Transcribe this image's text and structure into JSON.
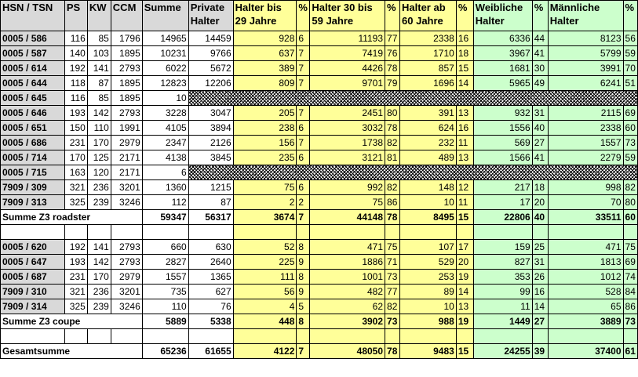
{
  "headers": {
    "hsn_tsn": "HSN / TSN",
    "ps": "PS",
    "kw": "KW",
    "ccm": "CCM",
    "summe": "Summe",
    "private": "Private Halter",
    "bis29": "Halter bis 29 Jahre",
    "pct": "%",
    "h30_59": "Halter 30 bis 59 Jahre",
    "ab60": "Halter ab 60 Jahre",
    "weiblich": "Weibliche Halter",
    "maennlich": "Männliche Halter"
  },
  "roadster_rows": [
    {
      "code": "0005 / 586",
      "ps": "116",
      "kw": "85",
      "ccm": "1796",
      "summe": "14965",
      "private": "14459",
      "b29": "928",
      "b29p": "6",
      "m": "11193",
      "mp": "77",
      "a60": "2338",
      "a60p": "16",
      "w": "6336",
      "wp": "44",
      "ma": "8123",
      "map": "56"
    },
    {
      "code": "0005 / 587",
      "ps": "140",
      "kw": "103",
      "ccm": "1895",
      "summe": "10231",
      "private": "9766",
      "b29": "637",
      "b29p": "7",
      "m": "7419",
      "mp": "76",
      "a60": "1710",
      "a60p": "18",
      "w": "3967",
      "wp": "41",
      "ma": "5799",
      "map": "59"
    },
    {
      "code": "0005 / 614",
      "ps": "192",
      "kw": "141",
      "ccm": "2793",
      "summe": "6022",
      "private": "5672",
      "b29": "389",
      "b29p": "7",
      "m": "4426",
      "mp": "78",
      "a60": "857",
      "a60p": "15",
      "w": "1681",
      "wp": "30",
      "ma": "3991",
      "map": "70"
    },
    {
      "code": "0005 / 644",
      "ps": "118",
      "kw": "87",
      "ccm": "1895",
      "summe": "12823",
      "private": "12206",
      "b29": "809",
      "b29p": "7",
      "m": "9701",
      "mp": "79",
      "a60": "1696",
      "a60p": "14",
      "w": "5965",
      "wp": "49",
      "ma": "6241",
      "map": "51"
    },
    {
      "code": "0005 / 645",
      "ps": "116",
      "kw": "85",
      "ccm": "1895",
      "summe": "10",
      "hatch": true
    },
    {
      "code": "0005 / 646",
      "ps": "193",
      "kw": "142",
      "ccm": "2793",
      "summe": "3228",
      "private": "3047",
      "b29": "205",
      "b29p": "7",
      "m": "2451",
      "mp": "80",
      "a60": "391",
      "a60p": "13",
      "w": "932",
      "wp": "31",
      "ma": "2115",
      "map": "69"
    },
    {
      "code": "0005 / 651",
      "ps": "150",
      "kw": "110",
      "ccm": "1991",
      "summe": "4105",
      "private": "3894",
      "b29": "238",
      "b29p": "6",
      "m": "3032",
      "mp": "78",
      "a60": "624",
      "a60p": "16",
      "w": "1556",
      "wp": "40",
      "ma": "2338",
      "map": "60"
    },
    {
      "code": "0005 / 686",
      "ps": "231",
      "kw": "170",
      "ccm": "2979",
      "summe": "2347",
      "private": "2126",
      "b29": "156",
      "b29p": "7",
      "m": "1738",
      "mp": "82",
      "a60": "232",
      "a60p": "11",
      "w": "569",
      "wp": "27",
      "ma": "1557",
      "map": "73"
    },
    {
      "code": "0005 / 714",
      "ps": "170",
      "kw": "125",
      "ccm": "2171",
      "summe": "4138",
      "private": "3845",
      "b29": "235",
      "b29p": "6",
      "m": "3121",
      "mp": "81",
      "a60": "489",
      "a60p": "13",
      "w": "1566",
      "wp": "41",
      "ma": "2279",
      "map": "59"
    },
    {
      "code": "0005 / 715",
      "ps": "163",
      "kw": "120",
      "ccm": "2171",
      "summe": "6",
      "hatch": true
    },
    {
      "code": "7909 / 309",
      "ps": "321",
      "kw": "236",
      "ccm": "3201",
      "summe": "1360",
      "private": "1215",
      "b29": "75",
      "b29p": "6",
      "m": "992",
      "mp": "82",
      "a60": "148",
      "a60p": "12",
      "w": "217",
      "wp": "18",
      "ma": "998",
      "map": "82"
    },
    {
      "code": "7909 / 313",
      "ps": "325",
      "kw": "239",
      "ccm": "3246",
      "summe": "112",
      "private": "87",
      "b29": "2",
      "b29p": "2",
      "m": "75",
      "mp": "86",
      "a60": "10",
      "a60p": "11",
      "w": "17",
      "wp": "20",
      "ma": "70",
      "map": "80"
    }
  ],
  "roadster_sum": {
    "label": "Summe Z3 roadster",
    "summe": "59347",
    "private": "56317",
    "b29": "3674",
    "b29p": "7",
    "m": "44148",
    "mp": "78",
    "a60": "8495",
    "a60p": "15",
    "w": "22806",
    "wp": "40",
    "ma": "33511",
    "map": "60"
  },
  "coupe_rows": [
    {
      "code": "0005 / 620",
      "ps": "192",
      "kw": "141",
      "ccm": "2793",
      "summe": "660",
      "private": "630",
      "b29": "52",
      "b29p": "8",
      "m": "471",
      "mp": "75",
      "a60": "107",
      "a60p": "17",
      "w": "159",
      "wp": "25",
      "ma": "471",
      "map": "75"
    },
    {
      "code": "0005 / 647",
      "ps": "193",
      "kw": "142",
      "ccm": "2793",
      "summe": "2827",
      "private": "2640",
      "b29": "225",
      "b29p": "9",
      "m": "1886",
      "mp": "71",
      "a60": "529",
      "a60p": "20",
      "w": "827",
      "wp": "31",
      "ma": "1813",
      "map": "69"
    },
    {
      "code": "0005 / 687",
      "ps": "231",
      "kw": "170",
      "ccm": "2979",
      "summe": "1557",
      "private": "1365",
      "b29": "111",
      "b29p": "8",
      "m": "1001",
      "mp": "73",
      "a60": "253",
      "a60p": "19",
      "w": "353",
      "wp": "26",
      "ma": "1012",
      "map": "74"
    },
    {
      "code": "7909 / 310",
      "ps": "321",
      "kw": "236",
      "ccm": "3201",
      "summe": "735",
      "private": "627",
      "b29": "56",
      "b29p": "9",
      "m": "482",
      "mp": "77",
      "a60": "89",
      "a60p": "14",
      "w": "99",
      "wp": "16",
      "ma": "528",
      "map": "84"
    },
    {
      "code": "7909 / 314",
      "ps": "325",
      "kw": "239",
      "ccm": "3246",
      "summe": "110",
      "private": "76",
      "b29": "4",
      "b29p": "5",
      "m": "62",
      "mp": "82",
      "a60": "10",
      "a60p": "13",
      "w": "11",
      "wp": "14",
      "ma": "65",
      "map": "86"
    }
  ],
  "coupe_sum": {
    "label": "Summe Z3 coupe",
    "summe": "5889",
    "private": "5338",
    "b29": "448",
    "b29p": "8",
    "m": "3902",
    "mp": "73",
    "a60": "988",
    "a60p": "19",
    "w": "1449",
    "wp": "27",
    "ma": "3889",
    "map": "73"
  },
  "total": {
    "label": "Gesamtsumme",
    "summe": "65236",
    "private": "61655",
    "b29": "4122",
    "b29p": "7",
    "m": "48050",
    "mp": "78",
    "a60": "9483",
    "a60p": "15",
    "w": "24255",
    "wp": "39",
    "ma": "37400",
    "map": "61"
  },
  "colors": {
    "header_gray": "#d9d9d9",
    "yellow": "#ffff99",
    "green": "#ccffcc"
  }
}
